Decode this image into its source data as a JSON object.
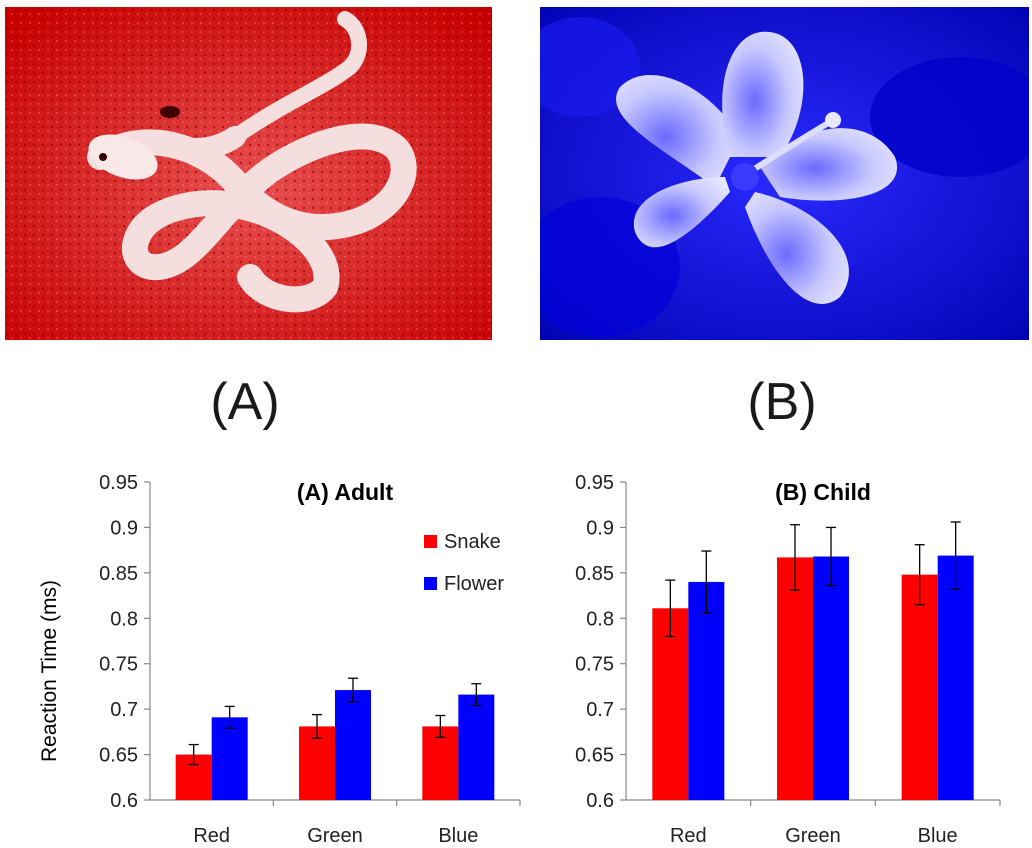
{
  "panels": {
    "label_a": "(A)",
    "label_b": "(B)",
    "photo_a_tint": "#e60000",
    "photo_b_tint": "#1a1aff"
  },
  "colors": {
    "snake": "#ff0000",
    "flower": "#0000ff"
  },
  "chart_data": [
    {
      "type": "bar",
      "title": "(A)  Adult",
      "ylabel": "Reaction Time (ms)",
      "xlabel": "",
      "categories": [
        "Red",
        "Green",
        "Blue"
      ],
      "ylim": [
        0.6,
        0.95
      ],
      "yticks": [
        "0.6",
        "0.65",
        "0.7",
        "0.75",
        "0.8",
        "0.85",
        "0.9",
        "0.95"
      ],
      "legend": "top-right",
      "series": [
        {
          "name": "Snake",
          "values": [
            0.65,
            0.681,
            0.681
          ],
          "errors": [
            0.011,
            0.013,
            0.012
          ]
        },
        {
          "name": "Flower",
          "values": [
            0.691,
            0.721,
            0.716
          ],
          "errors": [
            0.012,
            0.013,
            0.012
          ]
        }
      ]
    },
    {
      "type": "bar",
      "title": "(B)  Child",
      "ylabel": "",
      "xlabel": "",
      "categories": [
        "Red",
        "Green",
        "Blue"
      ],
      "ylim": [
        0.6,
        0.95
      ],
      "yticks": [
        "0.6",
        "0.65",
        "0.7",
        "0.75",
        "0.8",
        "0.85",
        "0.9",
        "0.95"
      ],
      "legend": "",
      "series": [
        {
          "name": "Snake",
          "values": [
            0.811,
            0.867,
            0.848
          ],
          "errors": [
            0.031,
            0.036,
            0.033
          ]
        },
        {
          "name": "Flower",
          "values": [
            0.84,
            0.868,
            0.869
          ],
          "errors": [
            0.034,
            0.032,
            0.037
          ]
        }
      ]
    }
  ]
}
